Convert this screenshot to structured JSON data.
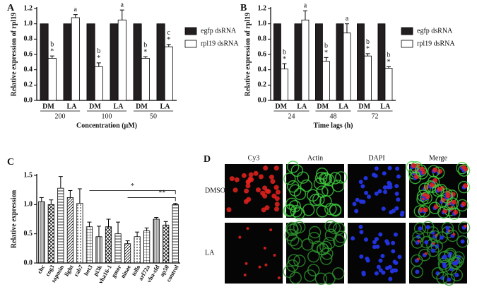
{
  "chart_data": [
    {
      "type": "bar",
      "panel": "A",
      "y_label": "Relative expression of rpl19",
      "x_label": "Concentration (μM)",
      "categories": [
        "DM",
        "LA",
        "DM",
        "LA",
        "DM",
        "LA"
      ],
      "group_labels": [
        "200",
        "100",
        "50"
      ],
      "ylim": [
        0,
        1.2
      ],
      "yticks": [
        {
          "value": 0,
          "label": "0.0"
        },
        0.2,
        0.4,
        0.6,
        0.8,
        {
          "value": 1,
          "label": "1.0"
        },
        1.2
      ],
      "series": [
        {
          "name": "egfp dsRNA",
          "color": "#231f20",
          "values": [
            1,
            1,
            1,
            1,
            1,
            1
          ]
        },
        {
          "name": "rpl19 dsRNA",
          "color": "#ffffff",
          "values": [
            0.55,
            1.08,
            0.44,
            1.05,
            0.55,
            0.7
          ],
          "errors": [
            0.03,
            0.04,
            0.05,
            0.13,
            0.02,
            0.03
          ],
          "letter_labels": [
            "b",
            "a",
            "b",
            "a",
            "b",
            "c"
          ],
          "star_labels": [
            "*",
            null,
            "*",
            null,
            "*",
            "*"
          ]
        }
      ]
    },
    {
      "type": "bar",
      "panel": "B",
      "y_label": "Relative expression of rpl19",
      "x_label": "Time lags (h)",
      "categories": [
        "DM",
        "LA",
        "DM",
        "LA",
        "DM",
        "LA"
      ],
      "group_labels": [
        "24",
        "48",
        "72"
      ],
      "ylim": [
        0,
        1.2
      ],
      "yticks": [
        {
          "value": 0,
          "label": "0.0"
        },
        0.2,
        0.4,
        0.6,
        0.8,
        {
          "value": 1,
          "label": "1.0"
        },
        1.2
      ],
      "series": [
        {
          "name": "egfp dsRNA",
          "color": "#231f20",
          "values": [
            1,
            1,
            1,
            1,
            1,
            1
          ]
        },
        {
          "name": "rpl19 dsRNA",
          "color": "#ffffff",
          "values": [
            0.41,
            1.05,
            0.51,
            0.88,
            0.58,
            0.42
          ],
          "errors": [
            0.07,
            0.12,
            0.05,
            0.12,
            0.03,
            0.02
          ],
          "letter_labels": [
            "b",
            "a",
            "b",
            "a",
            "b",
            "b"
          ],
          "star_labels": [
            "*",
            null,
            "*",
            null,
            "*",
            "*"
          ]
        }
      ]
    },
    {
      "type": "bar",
      "panel": "C",
      "y_label": "Relative expression",
      "categories": [
        "chc",
        "cog3",
        "saposin",
        "light",
        "rab7",
        "bet3",
        "pi3k",
        "vha16-1",
        "gmer",
        "ninae",
        "tollo",
        "arf72a",
        "vha-sfd",
        "ap50",
        "control"
      ],
      "values": [
        1.05,
        1.0,
        1.28,
        1.12,
        1.02,
        0.62,
        0.45,
        0.62,
        0.5,
        0.33,
        0.45,
        0.55,
        0.75,
        0.65,
        1.0
      ],
      "errors": [
        0.07,
        0.08,
        0.2,
        0.12,
        0.25,
        0.08,
        0.18,
        0.13,
        0.2,
        0.05,
        0.08,
        0.05,
        0.03,
        0.06,
        0.02
      ],
      "significance": [
        "*",
        "**"
      ],
      "ylim": [
        0,
        1.5
      ],
      "yticks": [
        {
          "value": 0,
          "label": "0.0"
        },
        0.5,
        {
          "value": 1,
          "label": "1.0"
        },
        1.5
      ]
    }
  ],
  "image_panel": {
    "label": "D",
    "columns": [
      "Cy3",
      "Actin",
      "DAPI",
      "Merge"
    ],
    "rows": [
      "DMSO",
      "LA"
    ]
  }
}
